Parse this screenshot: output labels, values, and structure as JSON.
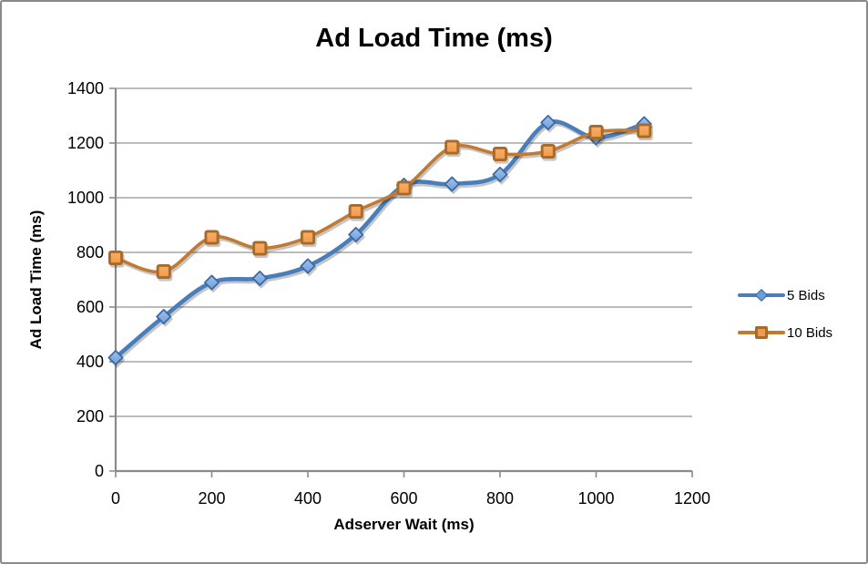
{
  "window": {
    "background": "#FFFFFF",
    "frame_border_color": "#8A8A8A"
  },
  "chart_data": {
    "type": "line",
    "title": "Ad Load Time (ms)",
    "xlabel": "Adserver Wait (ms)",
    "ylabel": "Ad Load Time (ms)",
    "x": [
      0,
      100,
      200,
      300,
      400,
      500,
      600,
      700,
      800,
      900,
      1000,
      1100
    ],
    "series": [
      {
        "name": "5 Bids",
        "marker": "diamond",
        "line_color": "#4A7EBB",
        "marker_fill": "#6D9EDA",
        "marker_fill_light": "#9FC3EC",
        "marker_border": "#3A67A2",
        "line_width": 4.6,
        "values": [
          415,
          565,
          690,
          705,
          750,
          865,
          1045,
          1050,
          1085,
          1275,
          1220,
          1270
        ]
      },
      {
        "name": "10 Bids",
        "marker": "square",
        "line_color": "#C27A33",
        "marker_fill": "#F09A4B",
        "marker_fill_light": "#F8AF68",
        "marker_border": "#A96A29",
        "line_width": 3.6,
        "values": [
          780,
          730,
          855,
          815,
          855,
          950,
          1035,
          1185,
          1160,
          1170,
          1240,
          1245
        ]
      }
    ],
    "xlim": [
      0,
      1200
    ],
    "ylim": [
      0,
      1400
    ],
    "x_ticks": [
      0,
      200,
      400,
      600,
      800,
      1000,
      1200
    ],
    "y_ticks": [
      0,
      200,
      400,
      600,
      800,
      1000,
      1200,
      1400
    ],
    "grid": true,
    "smooth": true,
    "legend_position": "right",
    "gridline_color": "#A6A6A6",
    "axis_color": "#8A8A8A",
    "text_color": "#000000"
  }
}
